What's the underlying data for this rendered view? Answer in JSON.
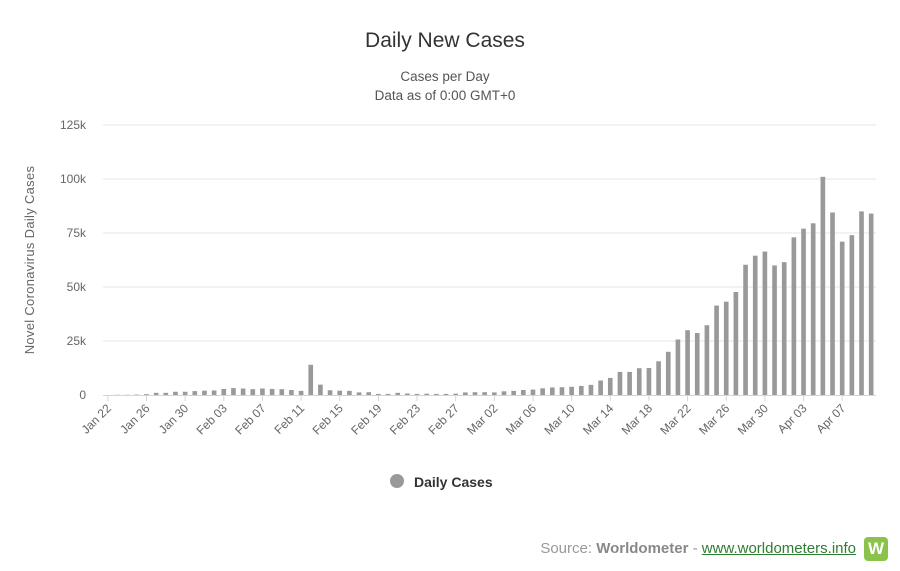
{
  "chart_data": {
    "type": "bar",
    "title": "Daily New Cases",
    "subtitle_lines": [
      "Cases per Day",
      "Data as of 0:00 GMT+0"
    ],
    "ylabel": "Novel Coronavirus Daily Cases",
    "xlabel": "",
    "ylim": [
      0,
      125000
    ],
    "ytick_values": [
      0,
      25000,
      50000,
      75000,
      100000,
      125000
    ],
    "ytick_labels": [
      "0",
      "25k",
      "50k",
      "75k",
      "100k",
      "125k"
    ],
    "grid": true,
    "legend_position": "bottom-center",
    "series": [
      {
        "name": "Daily Cases",
        "color": "#999999",
        "values": [
          0,
          100,
          100,
          200,
          400,
          1000,
          1000,
          1500,
          1500,
          1800,
          2000,
          2100,
          2800,
          3200,
          3000,
          2700,
          3000,
          2800,
          2700,
          2300,
          1900,
          14000,
          4800,
          2200,
          2000,
          1900,
          1200,
          1300,
          500,
          500,
          1000,
          700,
          500,
          600,
          500,
          500,
          600,
          1200,
          1300,
          1300,
          1200,
          1700,
          1900,
          2300,
          2500,
          3100,
          3500,
          3600,
          3800,
          4200,
          4700,
          6700,
          7900,
          10700,
          10700,
          12400,
          12500,
          15600,
          20000,
          25700,
          30000,
          28700,
          32300,
          41400,
          43200,
          47700,
          60300,
          64500,
          66400,
          60000,
          61500,
          73000,
          77000,
          79500,
          101000,
          84500,
          71000,
          74000,
          85000,
          84000
        ]
      }
    ],
    "x_start": "Jan 22",
    "x_end": "Apr 10",
    "x_tick_labels": [
      "Jan 22",
      "Jan 26",
      "Jan 30",
      "Feb 03",
      "Feb 07",
      "Feb 11",
      "Feb 15",
      "Feb 19",
      "Feb 23",
      "Feb 27",
      "Mar 02",
      "Mar 06",
      "Mar 10",
      "Mar 14",
      "Mar 18",
      "Mar 22",
      "Mar 26",
      "Mar 30",
      "Apr 03",
      "Apr 07"
    ]
  },
  "source": {
    "prefix": "Source: ",
    "brand": "Worldometer",
    "separator": " - ",
    "link_text": "www.worldometers.info",
    "logo_letter": "W"
  }
}
